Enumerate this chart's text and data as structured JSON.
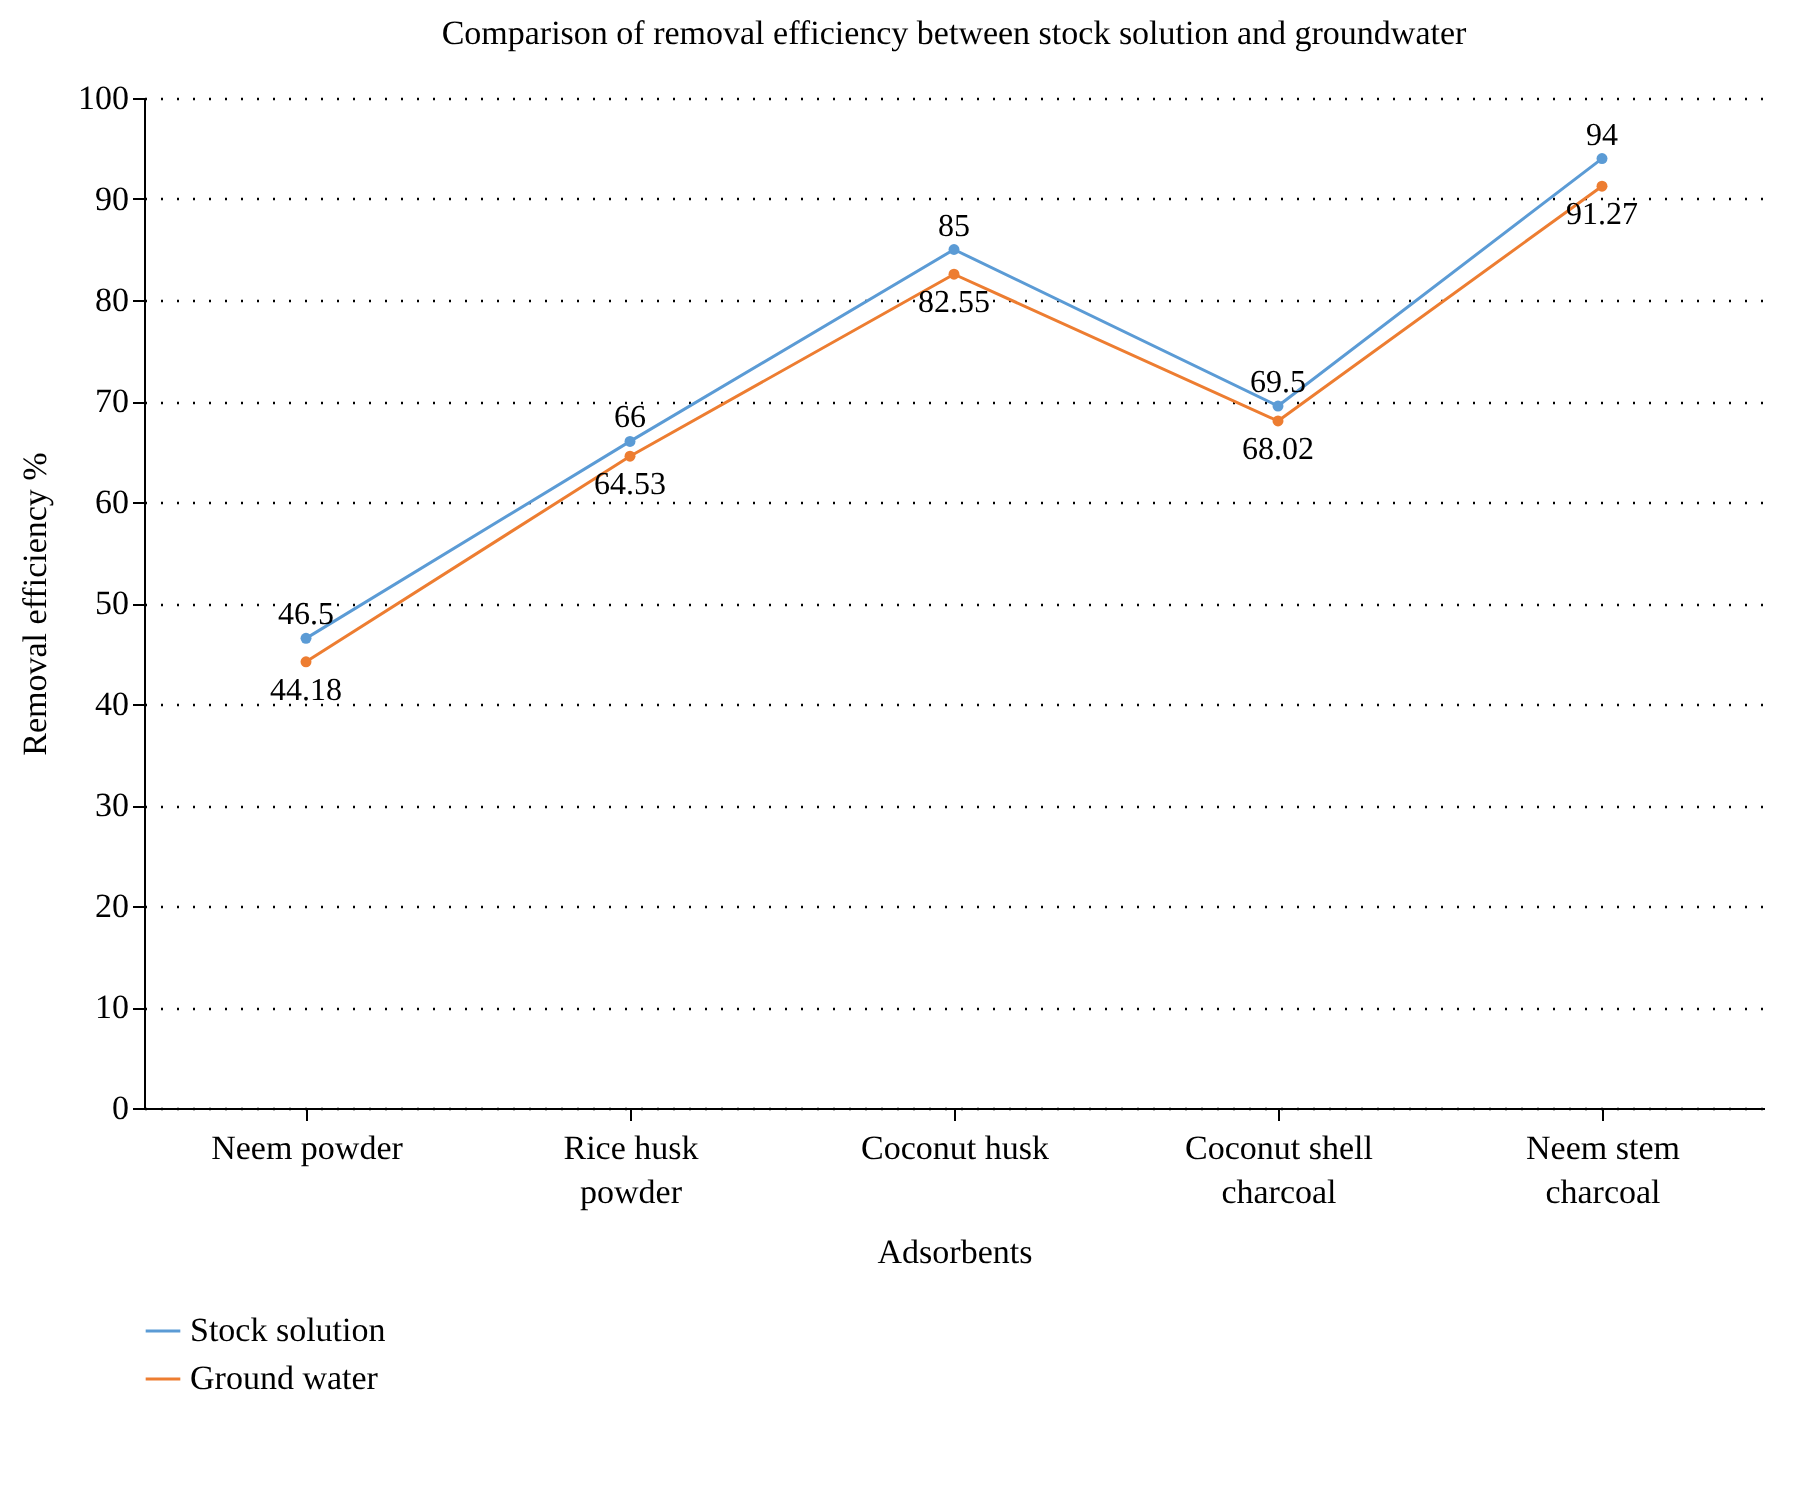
{
  "chart_data": {
    "type": "line",
    "title": "Comparison of removal efficiency between stock solution and groundwater",
    "xlabel": "Adsorbents",
    "ylabel": "Removal efficiency %",
    "categories": [
      "Neem powder",
      "Rice husk powder",
      "Coconut husk",
      "Coconut shell charcoal",
      "Neem stem charcoal"
    ],
    "series": [
      {
        "name": "Stock solution",
        "color": "#5b9bd5",
        "values": [
          46.5,
          66,
          85,
          69.5,
          94
        ]
      },
      {
        "name": "Ground water",
        "color": "#ed7d31",
        "values": [
          44.18,
          64.53,
          82.55,
          68.02,
          91.27
        ]
      }
    ],
    "ylim": [
      0,
      100
    ],
    "yticks": [
      0,
      10,
      20,
      30,
      40,
      50,
      60,
      70,
      80,
      90,
      100
    ],
    "grid": "y",
    "legend": "bottom left",
    "marker": "circle",
    "line_style": "solid",
    "data_labels": true
  }
}
